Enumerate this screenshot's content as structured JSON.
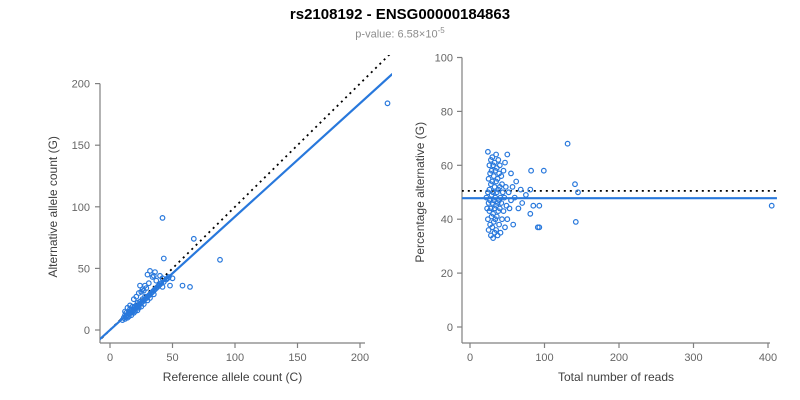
{
  "header": {
    "title": "rs2108192 - ENSG00000184863",
    "subtitle_label": "p-value: ",
    "subtitle_mantissa": "6.58×10",
    "subtitle_exponent": "-5"
  },
  "colors": {
    "points": "#2878DC",
    "fit_line": "#2878DC",
    "reference_line": "#000000",
    "axis": "#808080",
    "tick_label": "#666666",
    "axis_label": "#404040",
    "title": "#000000",
    "subtitle": "#8c8c8c",
    "background": "#ffffff"
  },
  "chart_data": [
    {
      "type": "scatter",
      "panel": "left",
      "xlabel": "Reference allele count (C)",
      "ylabel": "Alternative allele count (G)",
      "xticks": [
        0,
        50,
        100,
        150,
        200
      ],
      "yticks": [
        0,
        50,
        100,
        150,
        200
      ],
      "xlim": [
        -10,
        226
      ],
      "ylim": [
        -10,
        223
      ],
      "grid": false,
      "legend": "none",
      "marker": "open-circle",
      "lines": [
        {
          "name": "identity-line-50pct-expected",
          "style": "dotted",
          "color": "#000000",
          "slope": 1,
          "intercept": 0
        },
        {
          "name": "fitted-line",
          "style": "solid",
          "color": "#2878DC",
          "slope": 0.92,
          "intercept": 0
        }
      ],
      "points": [
        [
          10,
          8
        ],
        [
          11,
          10
        ],
        [
          12,
          9
        ],
        [
          12,
          12
        ],
        [
          12,
          15
        ],
        [
          13,
          11
        ],
        [
          13,
          14
        ],
        [
          14,
          12
        ],
        [
          14,
          10
        ],
        [
          14,
          18
        ],
        [
          15,
          13
        ],
        [
          15,
          15
        ],
        [
          15,
          11
        ],
        [
          16,
          14
        ],
        [
          16,
          17
        ],
        [
          16,
          20
        ],
        [
          17,
          14
        ],
        [
          17,
          16
        ],
        [
          17,
          12
        ],
        [
          18,
          15
        ],
        [
          18,
          17
        ],
        [
          18,
          19
        ],
        [
          19,
          16
        ],
        [
          19,
          14
        ],
        [
          19,
          25
        ],
        [
          20,
          17
        ],
        [
          20,
          19
        ],
        [
          20,
          15
        ],
        [
          21,
          18
        ],
        [
          21,
          20
        ],
        [
          21,
          27
        ],
        [
          22,
          19
        ],
        [
          22,
          16
        ],
        [
          22,
          22
        ],
        [
          23,
          20
        ],
        [
          23,
          18
        ],
        [
          23,
          30
        ],
        [
          24,
          21
        ],
        [
          24,
          23
        ],
        [
          24,
          36
        ],
        [
          25,
          22
        ],
        [
          25,
          19
        ],
        [
          25,
          31
        ],
        [
          26,
          23
        ],
        [
          26,
          25
        ],
        [
          26,
          33
        ],
        [
          27,
          24
        ],
        [
          27,
          21
        ],
        [
          27,
          32
        ],
        [
          28,
          25
        ],
        [
          28,
          27
        ],
        [
          28,
          36
        ],
        [
          29,
          26
        ],
        [
          29,
          34
        ],
        [
          30,
          27
        ],
        [
          30,
          24
        ],
        [
          30,
          45
        ],
        [
          31,
          28
        ],
        [
          31,
          38
        ],
        [
          32,
          29
        ],
        [
          32,
          26
        ],
        [
          32,
          48
        ],
        [
          33,
          30
        ],
        [
          34,
          31
        ],
        [
          34,
          43
        ],
        [
          35,
          32
        ],
        [
          35,
          29
        ],
        [
          35,
          44
        ],
        [
          36,
          33
        ],
        [
          36,
          47
        ],
        [
          37,
          34
        ],
        [
          37,
          40
        ],
        [
          38,
          35
        ],
        [
          39,
          36
        ],
        [
          40,
          37
        ],
        [
          40,
          44
        ],
        [
          41,
          38
        ],
        [
          42,
          42
        ],
        [
          42,
          35
        ],
        [
          42,
          91
        ],
        [
          43,
          39
        ],
        [
          43,
          58
        ],
        [
          45,
          41
        ],
        [
          46,
          42
        ],
        [
          47,
          43
        ],
        [
          48,
          36
        ],
        [
          50,
          42
        ],
        [
          58,
          36
        ],
        [
          64,
          35
        ],
        [
          67,
          74
        ],
        [
          88,
          57
        ],
        [
          222,
          184
        ]
      ]
    },
    {
      "type": "scatter",
      "panel": "right",
      "xlabel": "Total number of reads",
      "ylabel": "Percentage alternative (G)",
      "xticks": [
        0,
        100,
        200,
        300,
        400
      ],
      "yticks": [
        0,
        20,
        40,
        60,
        80,
        100
      ],
      "xlim": [
        -11,
        412
      ],
      "ylim": [
        -6,
        101
      ],
      "grid": false,
      "legend": "none",
      "marker": "open-circle",
      "lines": [
        {
          "name": "expected-50pct-line",
          "style": "dotted",
          "color": "#000000",
          "slope": 0,
          "intercept": 50.5
        },
        {
          "name": "mean-percentage-line",
          "style": "solid",
          "color": "#2878DC",
          "slope": 0,
          "intercept": 47.8
        }
      ],
      "points": [
        [
          22,
          48
        ],
        [
          23,
          44
        ],
        [
          24,
          50
        ],
        [
          24,
          40
        ],
        [
          24,
          65
        ],
        [
          25,
          55
        ],
        [
          25,
          46
        ],
        [
          25,
          36
        ],
        [
          26,
          60
        ],
        [
          26,
          51
        ],
        [
          26,
          43
        ],
        [
          27,
          57
        ],
        [
          27,
          47
        ],
        [
          27,
          38
        ],
        [
          28,
          62
        ],
        [
          28,
          53
        ],
        [
          28,
          44
        ],
        [
          28,
          34
        ],
        [
          29,
          58
        ],
        [
          29,
          49
        ],
        [
          29,
          41
        ],
        [
          30,
          63
        ],
        [
          30,
          54
        ],
        [
          30,
          46
        ],
        [
          30,
          37
        ],
        [
          31,
          60
        ],
        [
          31,
          50
        ],
        [
          31,
          42
        ],
        [
          31,
          33
        ],
        [
          32,
          56
        ],
        [
          32,
          47
        ],
        [
          32,
          39
        ],
        [
          33,
          61
        ],
        [
          33,
          52
        ],
        [
          33,
          44
        ],
        [
          33,
          35
        ],
        [
          34,
          58
        ],
        [
          34,
          48
        ],
        [
          34,
          40
        ],
        [
          35,
          64
        ],
        [
          35,
          54
        ],
        [
          35,
          45
        ],
        [
          35,
          36
        ],
        [
          36,
          59
        ],
        [
          36,
          50
        ],
        [
          36,
          41
        ],
        [
          37,
          55
        ],
        [
          37,
          46
        ],
        [
          37,
          34
        ],
        [
          38,
          62
        ],
        [
          38,
          51
        ],
        [
          38,
          43
        ],
        [
          39,
          57
        ],
        [
          39,
          47
        ],
        [
          39,
          38
        ],
        [
          40,
          60
        ],
        [
          40,
          52
        ],
        [
          40,
          44
        ],
        [
          41,
          48
        ],
        [
          41,
          35
        ],
        [
          42,
          56
        ],
        [
          42,
          46
        ],
        [
          43,
          53
        ],
        [
          43,
          40
        ],
        [
          44,
          50
        ],
        [
          45,
          58
        ],
        [
          45,
          43
        ],
        [
          46,
          48
        ],
        [
          47,
          61
        ],
        [
          47,
          37
        ],
        [
          48,
          52
        ],
        [
          49,
          45
        ],
        [
          50,
          64
        ],
        [
          50,
          40
        ],
        [
          52,
          50
        ],
        [
          53,
          44
        ],
        [
          55,
          57
        ],
        [
          55,
          47
        ],
        [
          57,
          52
        ],
        [
          58,
          38
        ],
        [
          60,
          48
        ],
        [
          62,
          54
        ],
        [
          65,
          44
        ],
        [
          68,
          51
        ],
        [
          70,
          46
        ],
        [
          75,
          49
        ],
        [
          81,
          51
        ],
        [
          81,
          42
        ],
        [
          82,
          58
        ],
        [
          85,
          45
        ],
        [
          91,
          37
        ],
        [
          93,
          45
        ],
        [
          93,
          37
        ],
        [
          99,
          58
        ],
        [
          131,
          68
        ],
        [
          141,
          53
        ],
        [
          142,
          39
        ],
        [
          145,
          50
        ],
        [
          405,
          45
        ]
      ]
    }
  ]
}
